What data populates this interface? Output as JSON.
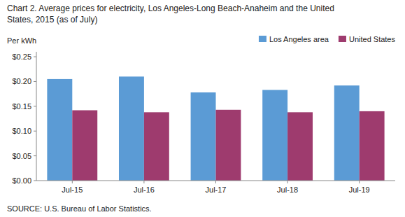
{
  "chart_data": {
    "type": "bar",
    "title": "Chart 2. Average prices for electricity, Los Angeles-Long Beach-Anaheim and the United",
    "subtitle": "States, 2015  (as of July)",
    "ylabel": "Per kWh",
    "source": "SOURCE: U.S. Bureau of Labor Statistics.",
    "categories": [
      "Jul-15",
      "Jul-16",
      "Jul-17",
      "Jul-18",
      "Jul-19"
    ],
    "series": [
      {
        "name": "Los Angeles area",
        "color": "#5B9BD5",
        "values": [
          0.205,
          0.21,
          0.178,
          0.183,
          0.192
        ]
      },
      {
        "name": "United States",
        "color": "#9E3B6E",
        "values": [
          0.142,
          0.138,
          0.143,
          0.138,
          0.14
        ]
      }
    ],
    "ylim": [
      0,
      0.26
    ],
    "yticks": [
      {
        "value": 0.0,
        "label": "$0.00"
      },
      {
        "value": 0.05,
        "label": "$0.05"
      },
      {
        "value": 0.1,
        "label": "$0.10"
      },
      {
        "value": 0.15,
        "label": "$0.15"
      },
      {
        "value": 0.2,
        "label": "$0.20"
      },
      {
        "value": 0.25,
        "label": "$0.25"
      }
    ],
    "grid": false,
    "legend": "upper right"
  }
}
